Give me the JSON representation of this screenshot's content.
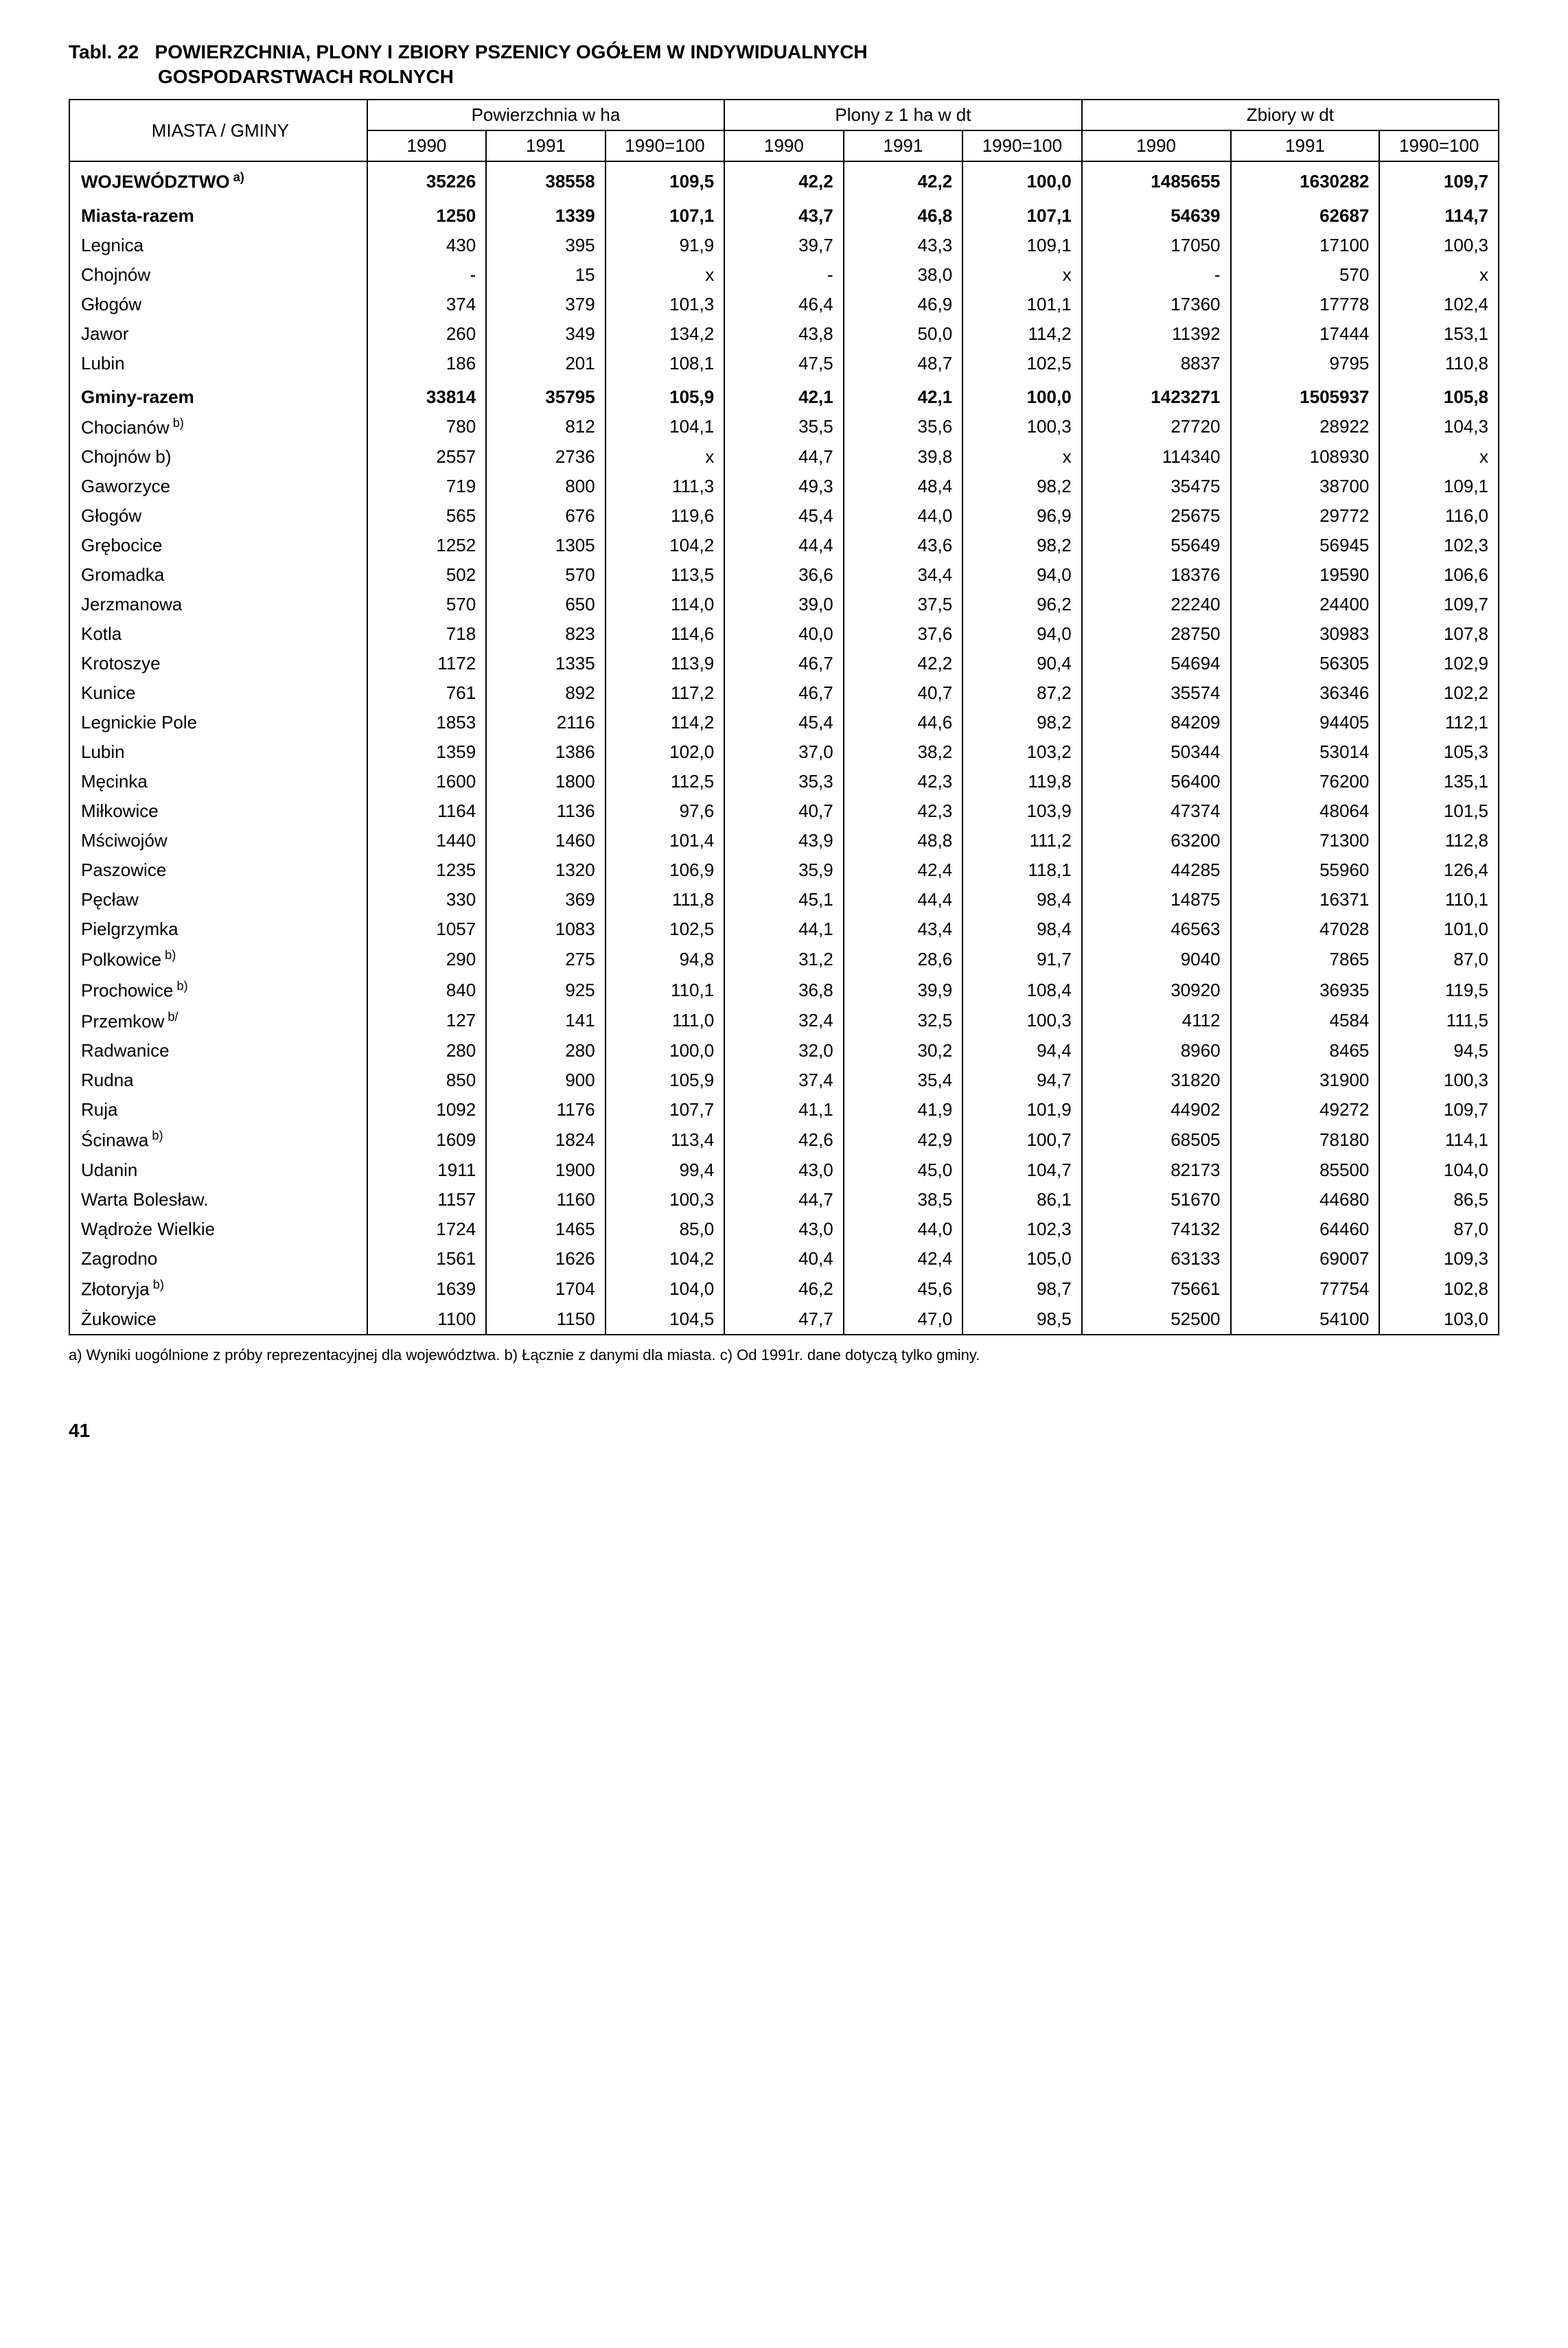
{
  "title": {
    "prefix": "Tabl. 22",
    "line1": "POWIERZCHNIA, PLONY I ZBIORY PSZENICY OGÓŁEM W INDYWIDUALNYCH",
    "line2": "GOSPODARSTWACH ROLNYCH"
  },
  "header": {
    "rowLabel": "MIASTA / GMINY",
    "groups": [
      "Powierzchnia w ha",
      "Plony z 1 ha w dt",
      "Zbiory w dt"
    ],
    "years": [
      "1990",
      "1991",
      "1990=100",
      "1990",
      "1991",
      "1990=100",
      "1990",
      "1991",
      "1990=100"
    ]
  },
  "rows": [
    {
      "name": "WOJEWÓDZTWO",
      "sup": "a)",
      "bold": true,
      "group": true,
      "v": [
        "35226",
        "38558",
        "109,5",
        "42,2",
        "42,2",
        "100,0",
        "1485655",
        "1630282",
        "109,7"
      ]
    },
    {
      "name": "Miasta-razem",
      "bold": true,
      "group": true,
      "v": [
        "1250",
        "1339",
        "107,1",
        "43,7",
        "46,8",
        "107,1",
        "54639",
        "62687",
        "114,7"
      ]
    },
    {
      "name": "Legnica",
      "v": [
        "430",
        "395",
        "91,9",
        "39,7",
        "43,3",
        "109,1",
        "17050",
        "17100",
        "100,3"
      ]
    },
    {
      "name": "Chojnów",
      "v": [
        "-",
        "15",
        "x",
        "-",
        "38,0",
        "x",
        "-",
        "570",
        "x"
      ]
    },
    {
      "name": "Głogów",
      "v": [
        "374",
        "379",
        "101,3",
        "46,4",
        "46,9",
        "101,1",
        "17360",
        "17778",
        "102,4"
      ]
    },
    {
      "name": "Jawor",
      "v": [
        "260",
        "349",
        "134,2",
        "43,8",
        "50,0",
        "114,2",
        "11392",
        "17444",
        "153,1"
      ]
    },
    {
      "name": "Lubin",
      "v": [
        "186",
        "201",
        "108,1",
        "47,5",
        "48,7",
        "102,5",
        "8837",
        "9795",
        "110,8"
      ]
    },
    {
      "name": "Gminy-razem",
      "bold": true,
      "group": true,
      "v": [
        "33814",
        "35795",
        "105,9",
        "42,1",
        "42,1",
        "100,0",
        "1423271",
        "1505937",
        "105,8"
      ]
    },
    {
      "name": "Chocianów",
      "sup": "b)",
      "v": [
        "780",
        "812",
        "104,1",
        "35,5",
        "35,6",
        "100,3",
        "27720",
        "28922",
        "104,3"
      ]
    },
    {
      "name": "Chojnów b)",
      "v": [
        "2557",
        "2736",
        "x",
        "44,7",
        "39,8",
        "x",
        "114340",
        "108930",
        "x"
      ]
    },
    {
      "name": "Gaworzyce",
      "v": [
        "719",
        "800",
        "111,3",
        "49,3",
        "48,4",
        "98,2",
        "35475",
        "38700",
        "109,1"
      ]
    },
    {
      "name": "Głogów",
      "v": [
        "565",
        "676",
        "119,6",
        "45,4",
        "44,0",
        "96,9",
        "25675",
        "29772",
        "116,0"
      ]
    },
    {
      "name": "Grębocice",
      "v": [
        "1252",
        "1305",
        "104,2",
        "44,4",
        "43,6",
        "98,2",
        "55649",
        "56945",
        "102,3"
      ]
    },
    {
      "name": "Gromadka",
      "v": [
        "502",
        "570",
        "113,5",
        "36,6",
        "34,4",
        "94,0",
        "18376",
        "19590",
        "106,6"
      ]
    },
    {
      "name": "Jerzmanowa",
      "v": [
        "570",
        "650",
        "114,0",
        "39,0",
        "37,5",
        "96,2",
        "22240",
        "24400",
        "109,7"
      ]
    },
    {
      "name": "Kotla",
      "v": [
        "718",
        "823",
        "114,6",
        "40,0",
        "37,6",
        "94,0",
        "28750",
        "30983",
        "107,8"
      ]
    },
    {
      "name": "Krotoszye",
      "v": [
        "1172",
        "1335",
        "113,9",
        "46,7",
        "42,2",
        "90,4",
        "54694",
        "56305",
        "102,9"
      ]
    },
    {
      "name": "Kunice",
      "v": [
        "761",
        "892",
        "117,2",
        "46,7",
        "40,7",
        "87,2",
        "35574",
        "36346",
        "102,2"
      ]
    },
    {
      "name": "Legnickie Pole",
      "v": [
        "1853",
        "2116",
        "114,2",
        "45,4",
        "44,6",
        "98,2",
        "84209",
        "94405",
        "112,1"
      ]
    },
    {
      "name": "Lubin",
      "v": [
        "1359",
        "1386",
        "102,0",
        "37,0",
        "38,2",
        "103,2",
        "50344",
        "53014",
        "105,3"
      ]
    },
    {
      "name": "Męcinka",
      "v": [
        "1600",
        "1800",
        "112,5",
        "35,3",
        "42,3",
        "119,8",
        "56400",
        "76200",
        "135,1"
      ]
    },
    {
      "name": "Miłkowice",
      "v": [
        "1164",
        "1136",
        "97,6",
        "40,7",
        "42,3",
        "103,9",
        "47374",
        "48064",
        "101,5"
      ]
    },
    {
      "name": "Mściwojów",
      "v": [
        "1440",
        "1460",
        "101,4",
        "43,9",
        "48,8",
        "111,2",
        "63200",
        "71300",
        "112,8"
      ]
    },
    {
      "name": "Paszowice",
      "v": [
        "1235",
        "1320",
        "106,9",
        "35,9",
        "42,4",
        "118,1",
        "44285",
        "55960",
        "126,4"
      ]
    },
    {
      "name": "Pęcław",
      "v": [
        "330",
        "369",
        "111,8",
        "45,1",
        "44,4",
        "98,4",
        "14875",
        "16371",
        "110,1"
      ]
    },
    {
      "name": "Pielgrzymka",
      "v": [
        "1057",
        "1083",
        "102,5",
        "44,1",
        "43,4",
        "98,4",
        "46563",
        "47028",
        "101,0"
      ]
    },
    {
      "name": "Polkowice",
      "sup": "b)",
      "v": [
        "290",
        "275",
        "94,8",
        "31,2",
        "28,6",
        "91,7",
        "9040",
        "7865",
        "87,0"
      ]
    },
    {
      "name": "Prochowice",
      "sup": "b)",
      "v": [
        "840",
        "925",
        "110,1",
        "36,8",
        "39,9",
        "108,4",
        "30920",
        "36935",
        "119,5"
      ]
    },
    {
      "name": "Przemkow",
      "sup": "b/",
      "v": [
        "127",
        "141",
        "111,0",
        "32,4",
        "32,5",
        "100,3",
        "4112",
        "4584",
        "111,5"
      ]
    },
    {
      "name": "Radwanice",
      "v": [
        "280",
        "280",
        "100,0",
        "32,0",
        "30,2",
        "94,4",
        "8960",
        "8465",
        "94,5"
      ]
    },
    {
      "name": "Rudna",
      "v": [
        "850",
        "900",
        "105,9",
        "37,4",
        "35,4",
        "94,7",
        "31820",
        "31900",
        "100,3"
      ]
    },
    {
      "name": "Ruja",
      "v": [
        "1092",
        "1176",
        "107,7",
        "41,1",
        "41,9",
        "101,9",
        "44902",
        "49272",
        "109,7"
      ]
    },
    {
      "name": "Ścinawa",
      "sup": "b)",
      "v": [
        "1609",
        "1824",
        "113,4",
        "42,6",
        "42,9",
        "100,7",
        "68505",
        "78180",
        "114,1"
      ]
    },
    {
      "name": "Udanin",
      "v": [
        "1911",
        "1900",
        "99,4",
        "43,0",
        "45,0",
        "104,7",
        "82173",
        "85500",
        "104,0"
      ]
    },
    {
      "name": "Warta Bolesław.",
      "v": [
        "1157",
        "1160",
        "100,3",
        "44,7",
        "38,5",
        "86,1",
        "51670",
        "44680",
        "86,5"
      ]
    },
    {
      "name": "Wądroże Wielkie",
      "v": [
        "1724",
        "1465",
        "85,0",
        "43,0",
        "44,0",
        "102,3",
        "74132",
        "64460",
        "87,0"
      ]
    },
    {
      "name": "Zagrodno",
      "v": [
        "1561",
        "1626",
        "104,2",
        "40,4",
        "42,4",
        "105,0",
        "63133",
        "69007",
        "109,3"
      ]
    },
    {
      "name": "Złotoryja",
      "sup": "b)",
      "v": [
        "1639",
        "1704",
        "104,0",
        "46,2",
        "45,6",
        "98,7",
        "75661",
        "77754",
        "102,8"
      ]
    },
    {
      "name": "Żukowice",
      "v": [
        "1100",
        "1150",
        "104,5",
        "47,7",
        "47,0",
        "98,5",
        "52500",
        "54100",
        "103,0"
      ]
    }
  ],
  "footnote": "a) Wyniki uogólnione z próby reprezentacyjnej dla województwa. b) Łącznie z danymi dla miasta. c) Od 1991r. dane dotyczą tylko gminy.",
  "pageNumber": "41"
}
